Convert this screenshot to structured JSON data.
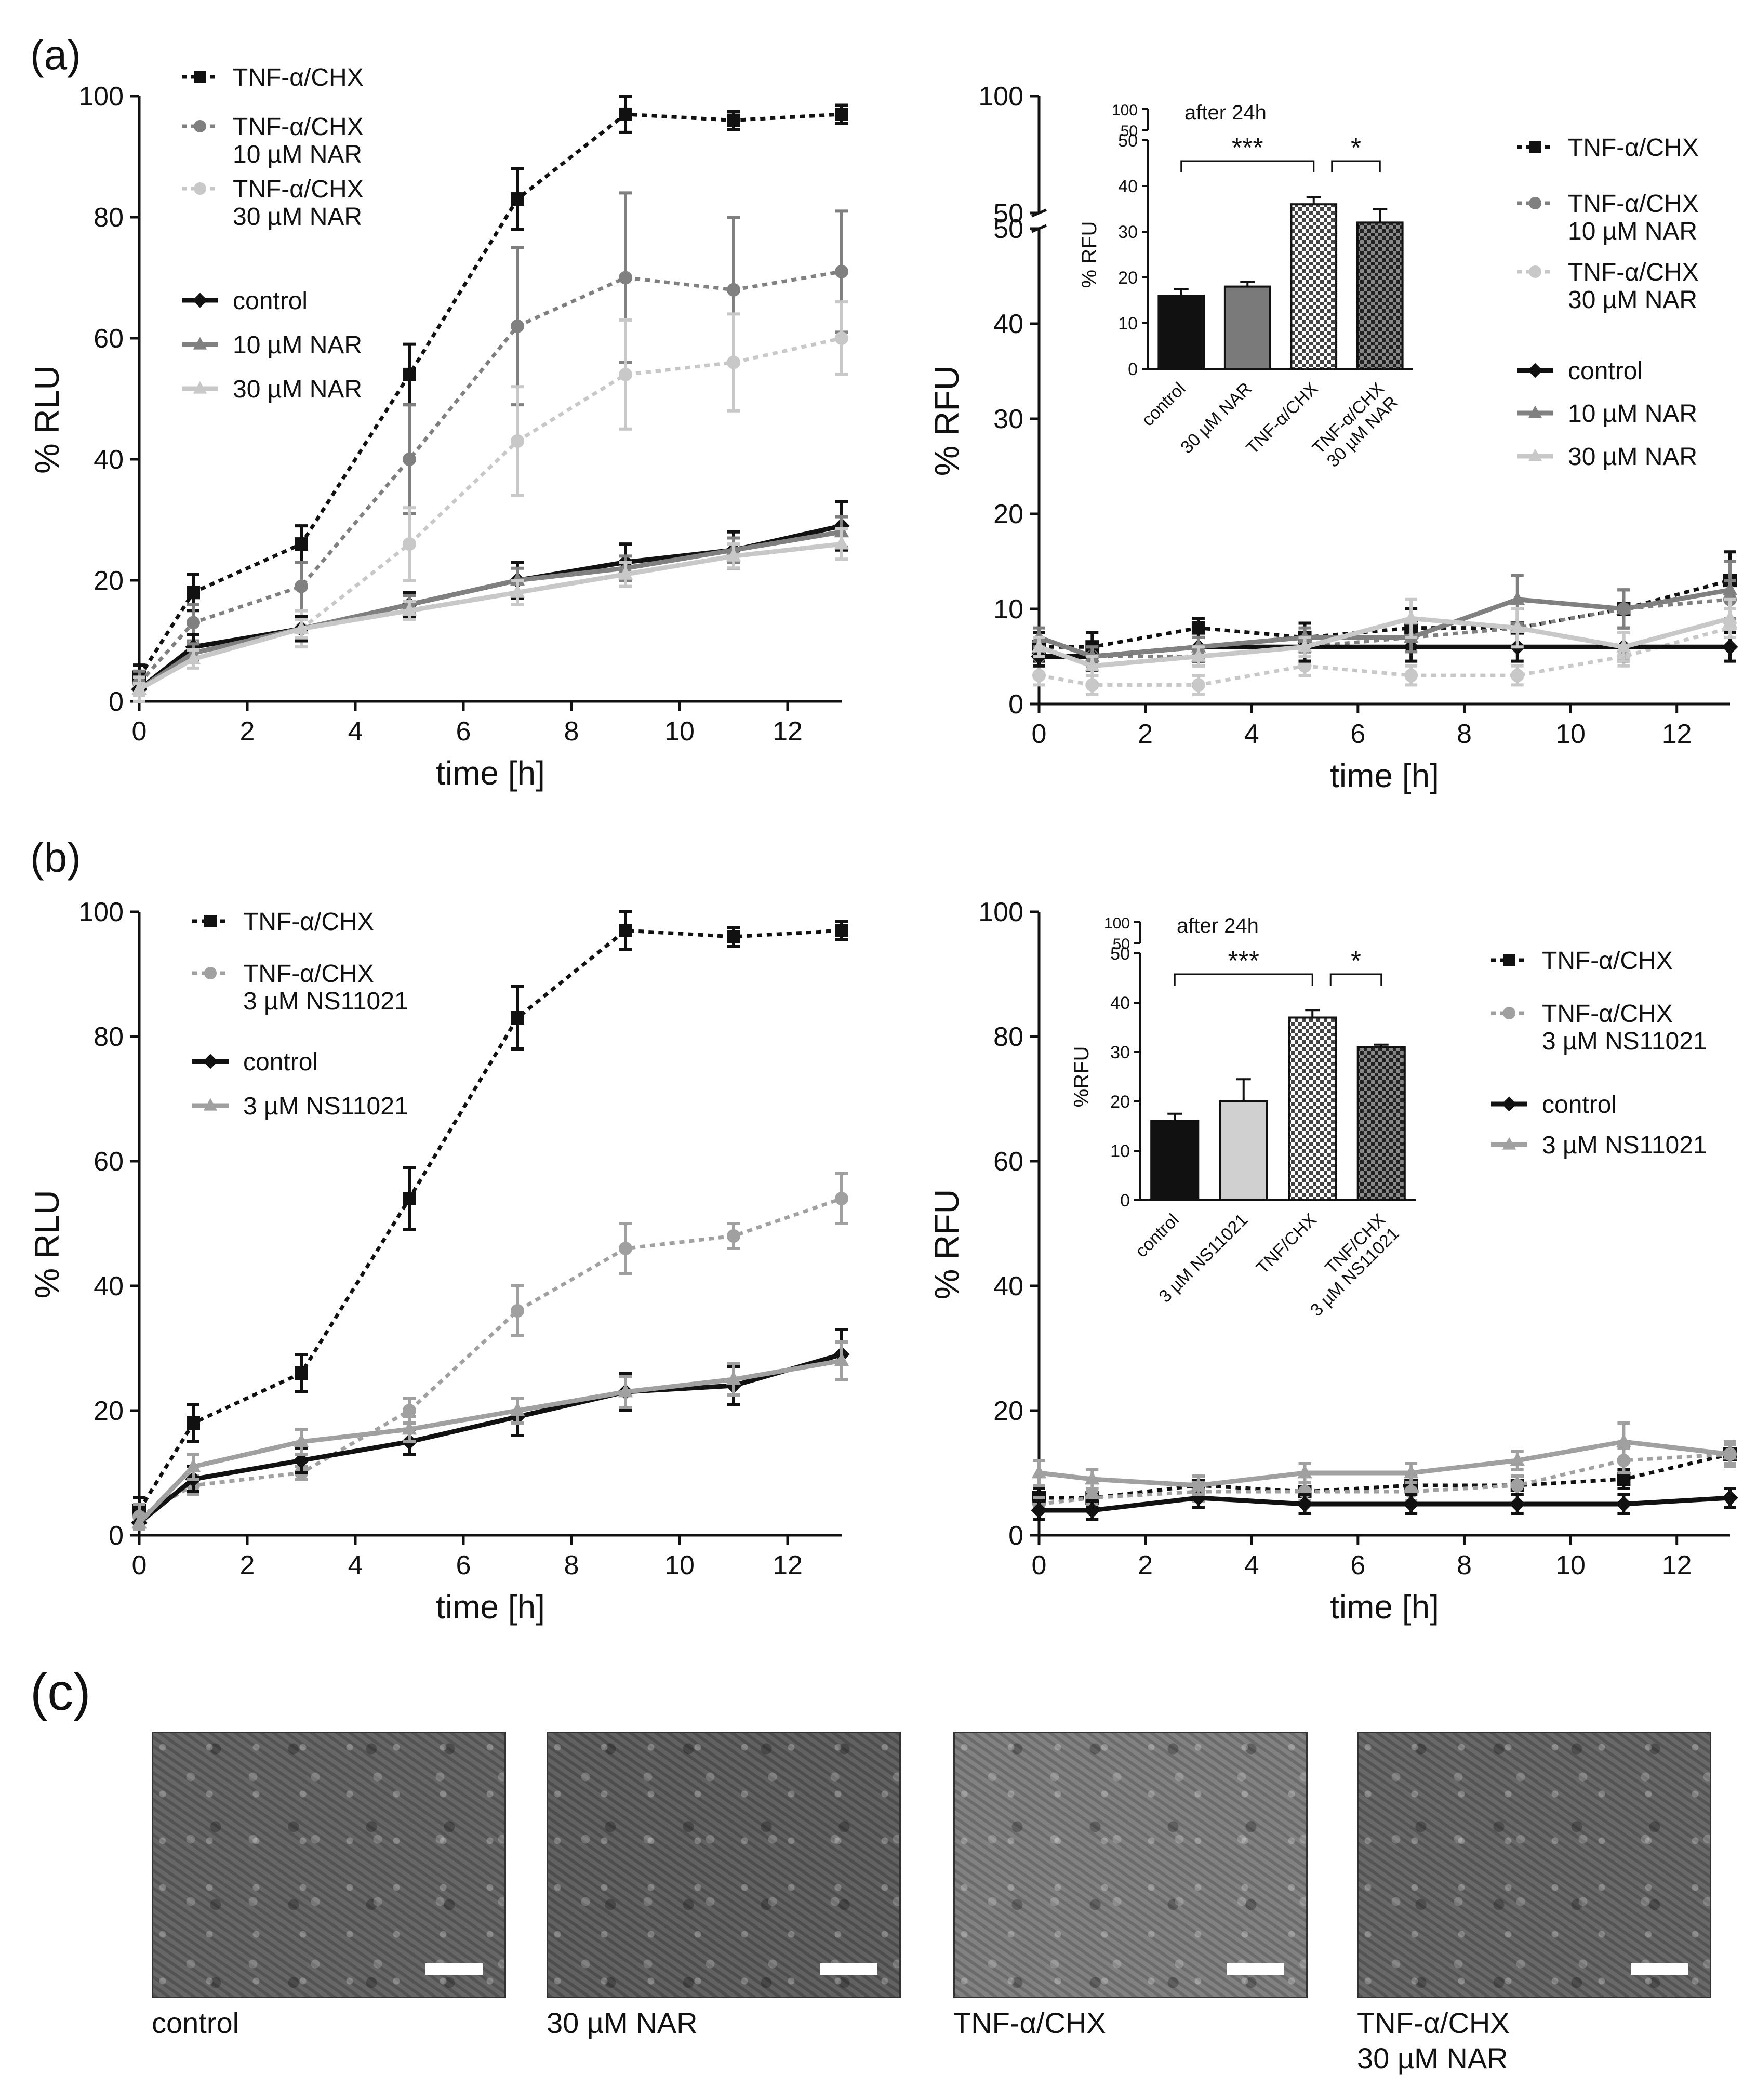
{
  "panel_labels": {
    "a": "(a)",
    "b": "(b)",
    "c": "(c)"
  },
  "chart_data": [
    {
      "id": "a-rlu",
      "type": "line",
      "xlabel": "time [h]",
      "ylabel": "% RLU",
      "xlim": [
        0,
        13
      ],
      "ylim": [
        0,
        100
      ],
      "xticks": [
        0,
        2,
        4,
        6,
        8,
        10,
        12
      ],
      "yticks": [
        0,
        20,
        40,
        60,
        80,
        100
      ],
      "x": [
        0,
        1,
        3,
        5,
        7,
        9,
        11,
        13
      ],
      "series": [
        {
          "name": "TNF-α/CHX",
          "style": "dotted",
          "color": "#111111",
          "marker": "square",
          "values": [
            4,
            18,
            26,
            54,
            83,
            97,
            96,
            97
          ],
          "errors": [
            2,
            3,
            3,
            5,
            5,
            3,
            1.5,
            1.5
          ]
        },
        {
          "name": "TNF-α/CHX\n10 µM NAR",
          "style": "dotted",
          "color": "#808080",
          "marker": "circle",
          "values": [
            3,
            13,
            19,
            40,
            62,
            70,
            68,
            71
          ],
          "errors": [
            2,
            3,
            4,
            9,
            13,
            14,
            12,
            10
          ]
        },
        {
          "name": "TNF-α/CHX\n30 µM NAR",
          "style": "dotted",
          "color": "#c8c8c8",
          "marker": "circle",
          "values": [
            2,
            9,
            12,
            26,
            43,
            54,
            56,
            60
          ],
          "errors": [
            2,
            2,
            3,
            6,
            9,
            9,
            8,
            6
          ]
        },
        {
          "name": "control",
          "style": "solid",
          "color": "#111111",
          "marker": "diamond",
          "values": [
            2,
            9,
            12,
            16,
            20,
            23,
            25,
            29
          ],
          "errors": [
            1,
            2,
            2,
            2,
            3,
            3,
            3,
            4
          ]
        },
        {
          "name": "10 µM NAR",
          "style": "solid",
          "color": "#808080",
          "marker": "triangle",
          "values": [
            2,
            8,
            12,
            16,
            20,
            22,
            25,
            28
          ],
          "errors": [
            1,
            1.5,
            1.5,
            1.5,
            2,
            2,
            2,
            2.5
          ]
        },
        {
          "name": "30 µM NAR",
          "style": "solid",
          "color": "#c8c8c8",
          "marker": "triangle",
          "values": [
            2,
            7,
            12,
            15,
            18,
            21,
            24,
            26
          ],
          "errors": [
            1,
            1.5,
            1.5,
            1.5,
            2,
            2,
            2,
            2.5
          ]
        }
      ]
    },
    {
      "id": "a-rfu",
      "type": "line",
      "xlabel": "time [h]",
      "ylabel": "% RFU",
      "xlim": [
        0,
        13
      ],
      "ylim": [
        0,
        100
      ],
      "xticks": [
        0,
        2,
        4,
        6,
        8,
        10,
        12
      ],
      "yticks": [
        0,
        10,
        20,
        30,
        40,
        50
      ],
      "yticks_upper": [
        50,
        100
      ],
      "axis_break": [
        50,
        50
      ],
      "x": [
        0,
        1,
        3,
        5,
        7,
        9,
        11,
        13
      ],
      "series": [
        {
          "name": "TNF-α/CHX",
          "style": "dotted",
          "color": "#111111",
          "marker": "square",
          "values": [
            6,
            6,
            8,
            7,
            8,
            8,
            10,
            13
          ],
          "errors": [
            1.5,
            1.5,
            1,
            1.5,
            2,
            2,
            2,
            3
          ]
        },
        {
          "name": "TNF-α/CHX\n10 µM NAR",
          "style": "dotted",
          "color": "#808080",
          "marker": "circle",
          "values": [
            5,
            5,
            5,
            6,
            7,
            8,
            10,
            11
          ],
          "errors": [
            1,
            1,
            1,
            1.5,
            1.5,
            2,
            2,
            2
          ]
        },
        {
          "name": "TNF-α/CHX\n30 µM NAR",
          "style": "dotted",
          "color": "#c8c8c8",
          "marker": "circle",
          "values": [
            3,
            2,
            2,
            4,
            3,
            3,
            5,
            8
          ],
          "errors": [
            1,
            1,
            1,
            1,
            1,
            1,
            1,
            2
          ]
        },
        {
          "name": "control",
          "style": "solid",
          "color": "#111111",
          "marker": "diamond",
          "values": [
            5,
            5,
            6,
            6,
            6,
            6,
            6,
            6
          ],
          "errors": [
            1,
            1.5,
            1.5,
            1.5,
            1.5,
            1.5,
            1.5,
            1.5
          ]
        },
        {
          "name": "10 µM NAR",
          "style": "solid",
          "color": "#808080",
          "marker": "triangle",
          "values": [
            7,
            5,
            6,
            7,
            7,
            11,
            10,
            12
          ],
          "errors": [
            1,
            1,
            1,
            1,
            1.5,
            2.5,
            2,
            3
          ]
        },
        {
          "name": "30 µM NAR",
          "style": "solid",
          "color": "#c8c8c8",
          "marker": "triangle",
          "values": [
            6,
            4,
            5,
            6,
            9,
            8,
            6,
            9
          ],
          "errors": [
            1,
            1,
            1,
            1,
            2,
            2,
            1.5,
            2
          ]
        }
      ]
    },
    {
      "id": "a-inset",
      "type": "bar",
      "title": "after 24h",
      "ylabel": "% RFU",
      "ylim": [
        0,
        100
      ],
      "yticks": [
        0,
        10,
        20,
        30,
        40,
        50
      ],
      "yticks_upper": [
        50,
        100
      ],
      "categories": [
        "control",
        "30 µM NAR",
        "TNF-α/CHX",
        "TNF-α/CHX\n30 µM NAR"
      ],
      "values": [
        16,
        18,
        36,
        32
      ],
      "errors": [
        1.5,
        1,
        1.5,
        3
      ],
      "fills": [
        "#111111",
        "#7a7a7a",
        "pattern-light",
        "pattern-dark"
      ],
      "significance": [
        {
          "from": 0,
          "to": 2,
          "label": "***"
        },
        {
          "from": 2,
          "to": 3,
          "label": "*"
        }
      ]
    },
    {
      "id": "b-rlu",
      "type": "line",
      "xlabel": "time [h]",
      "ylabel": "% RLU",
      "xlim": [
        0,
        13
      ],
      "ylim": [
        0,
        100
      ],
      "xticks": [
        0,
        2,
        4,
        6,
        8,
        10,
        12
      ],
      "yticks": [
        0,
        20,
        40,
        60,
        80,
        100
      ],
      "x": [
        0,
        1,
        3,
        5,
        7,
        9,
        11,
        13
      ],
      "series": [
        {
          "name": "TNF-α/CHX",
          "style": "dotted",
          "color": "#111111",
          "marker": "square",
          "values": [
            4,
            18,
            26,
            54,
            83,
            97,
            96,
            97
          ],
          "errors": [
            2,
            3,
            3,
            5,
            5,
            3,
            1.5,
            1.5
          ]
        },
        {
          "name": "TNF-α/CHX\n3 µM NS11021",
          "style": "dotted",
          "color": "#a0a0a0",
          "marker": "circle",
          "values": [
            3,
            8,
            10,
            20,
            36,
            46,
            48,
            54
          ],
          "errors": [
            2,
            1.5,
            1,
            2,
            4,
            4,
            2,
            4
          ]
        },
        {
          "name": "control",
          "style": "solid",
          "color": "#111111",
          "marker": "diamond",
          "values": [
            2,
            9,
            12,
            15,
            19,
            23,
            24,
            29
          ],
          "errors": [
            1,
            2,
            2,
            2,
            3,
            3,
            3,
            4
          ]
        },
        {
          "name": "3 µM NS11021",
          "style": "solid",
          "color": "#a0a0a0",
          "marker": "triangle",
          "values": [
            2,
            11,
            15,
            17,
            20,
            23,
            25,
            28
          ],
          "errors": [
            1,
            2,
            2,
            2,
            2,
            2.5,
            2.5,
            3
          ]
        }
      ]
    },
    {
      "id": "b-rfu",
      "type": "line",
      "xlabel": "time [h]",
      "ylabel": "% RFU",
      "xlim": [
        0,
        13
      ],
      "ylim": [
        0,
        100
      ],
      "xticks": [
        0,
        2,
        4,
        6,
        8,
        10,
        12
      ],
      "yticks": [
        0,
        20,
        40,
        60,
        80,
        100
      ],
      "x": [
        0,
        1,
        3,
        5,
        7,
        9,
        11,
        13
      ],
      "series": [
        {
          "name": "TNF-α/CHX",
          "style": "dotted",
          "color": "#111111",
          "marker": "square",
          "values": [
            6,
            6,
            8,
            7,
            8,
            8,
            9,
            13
          ],
          "errors": [
            1.5,
            1.5,
            1.5,
            1.5,
            1.5,
            1.5,
            1.5,
            1.5
          ]
        },
        {
          "name": "TNF-α/CHX\n3 µM NS11021",
          "style": "dotted",
          "color": "#a0a0a0",
          "marker": "circle",
          "values": [
            5,
            6,
            7,
            7,
            7,
            8,
            12,
            13
          ],
          "errors": [
            1,
            1,
            1.5,
            1.5,
            1.5,
            1.5,
            2,
            2
          ]
        },
        {
          "name": "control",
          "style": "solid",
          "color": "#111111",
          "marker": "diamond",
          "values": [
            4,
            4,
            6,
            5,
            5,
            5,
            5,
            6
          ],
          "errors": [
            1.5,
            1.5,
            1.5,
            1.5,
            1.5,
            1.5,
            1.5,
            1.5
          ]
        },
        {
          "name": "3 µM NS11021",
          "style": "solid",
          "color": "#a0a0a0",
          "marker": "triangle",
          "values": [
            10,
            9,
            8,
            10,
            10,
            12,
            15,
            13
          ],
          "errors": [
            2,
            1.5,
            1.5,
            1.5,
            1.5,
            1.5,
            3,
            1.5
          ]
        }
      ]
    },
    {
      "id": "b-inset",
      "type": "bar",
      "title": "after 24h",
      "ylabel": "%RFU",
      "ylim": [
        0,
        100
      ],
      "yticks": [
        0,
        10,
        20,
        30,
        40,
        50
      ],
      "yticks_upper": [
        50,
        100
      ],
      "categories": [
        "control",
        "3 µM NS11021",
        "TNF/CHX",
        "TNF/CHX\n3 µM NS11021"
      ],
      "values": [
        16,
        20,
        37,
        31
      ],
      "errors": [
        1.5,
        4.5,
        1.5,
        0.5
      ],
      "fills": [
        "#111111",
        "#d0d0d0",
        "pattern-light",
        "pattern-dark"
      ],
      "significance": [
        {
          "from": 0,
          "to": 2,
          "label": "***"
        },
        {
          "from": 2,
          "to": 3,
          "label": "*"
        }
      ]
    }
  ],
  "micrographs": [
    {
      "caption": "control",
      "tone": "#5e5e5e"
    },
    {
      "caption": "30 µM NAR",
      "tone": "#585858"
    },
    {
      "caption": "TNF-α/CHX",
      "tone": "#7a7a7a"
    },
    {
      "caption": "TNF-α/CHX\n30 µM NAR",
      "tone": "#606060"
    }
  ]
}
